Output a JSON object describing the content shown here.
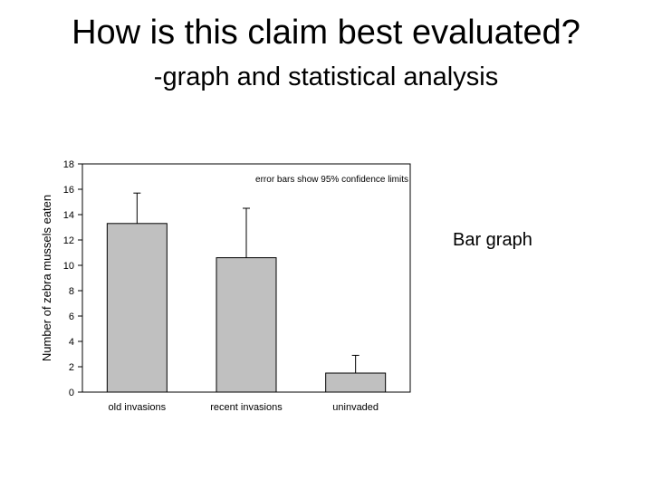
{
  "slide": {
    "title": "How is this claim best evaluated?",
    "subtitle": "-graph and statistical analysis",
    "side_label": "Bar graph"
  },
  "chart_data": {
    "type": "bar",
    "categories": [
      "old invasions",
      "recent invasions",
      "uninvaded"
    ],
    "values": [
      13.3,
      10.6,
      1.5
    ],
    "error_upper": [
      15.7,
      14.5,
      2.9
    ],
    "ylabel": "Number of zebra mussels eaten",
    "xlabel": "",
    "ylim": [
      0,
      18
    ],
    "yticks": [
      0,
      2,
      4,
      6,
      8,
      10,
      12,
      14,
      16,
      18
    ],
    "annotation": "error bars show 95% confidence limits",
    "bar_color": "#c0c0c0",
    "grid": false
  }
}
